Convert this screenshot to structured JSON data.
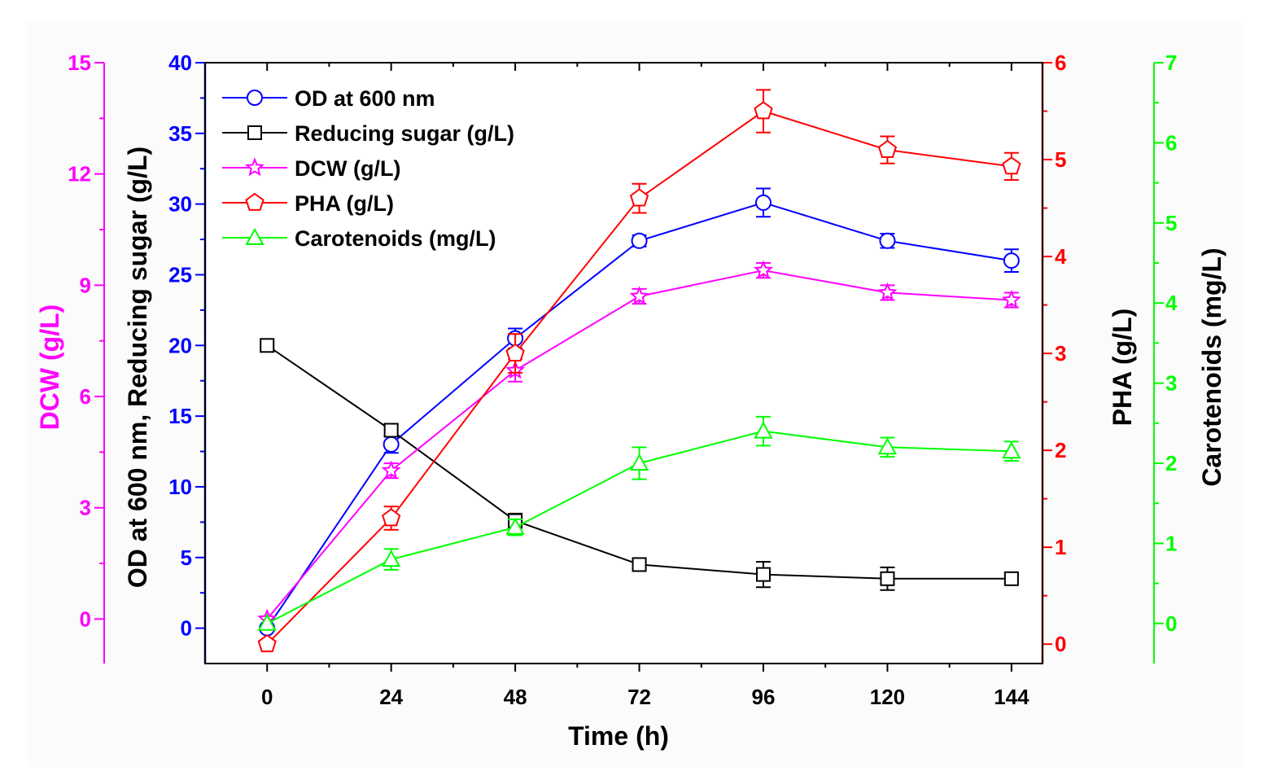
{
  "chart_data": {
    "type": "line",
    "xlabel": "Time (h)",
    "x": [
      0,
      24,
      48,
      72,
      96,
      120,
      144
    ],
    "x_ticks": [
      "0",
      "24",
      "48",
      "72",
      "96",
      "120",
      "144"
    ],
    "xlim": [
      -12,
      150
    ],
    "axes": [
      {
        "id": "dcw",
        "label": "DCW (g/L)",
        "color": "#FF00FF",
        "ylim": [
          -1.2,
          15
        ],
        "ticks": [
          "0",
          "3",
          "6",
          "9",
          "12",
          "15"
        ],
        "tick_values": [
          0,
          3,
          6,
          9,
          12,
          15
        ]
      },
      {
        "id": "left",
        "label": "OD at 600 nm, Reducing sugar (g/L)",
        "color": "#0000FF",
        "label_color": "#000000",
        "ylim": [
          -2.5,
          40
        ],
        "ticks": [
          "0",
          "5",
          "10",
          "15",
          "20",
          "25",
          "30",
          "35",
          "40"
        ],
        "tick_values": [
          0,
          5,
          10,
          15,
          20,
          25,
          30,
          35,
          40
        ]
      },
      {
        "id": "pha",
        "label": "PHA (g/L)",
        "color": "#FF0000",
        "label_color": "#000000",
        "ylim": [
          -0.2,
          6
        ],
        "ticks": [
          "0",
          "1",
          "2",
          "3",
          "4",
          "5",
          "6"
        ],
        "tick_values": [
          0,
          1,
          2,
          3,
          4,
          5,
          6
        ]
      },
      {
        "id": "car",
        "label": "Carotenoids (mg/L)",
        "color": "#00FF00",
        "label_color": "#000000",
        "ylim": [
          -0.5,
          7
        ],
        "ticks": [
          "0",
          "1",
          "2",
          "3",
          "4",
          "5",
          "6",
          "7"
        ],
        "tick_values": [
          0,
          1,
          2,
          3,
          4,
          5,
          6,
          7
        ]
      }
    ],
    "series": [
      {
        "name": "OD at 600 nm",
        "axis": "left",
        "color": "#0000FF",
        "marker": "circle",
        "values": [
          0,
          13.0,
          20.5,
          27.4,
          30.1,
          27.4,
          26.0
        ],
        "errors": [
          0,
          0.6,
          0.7,
          0.4,
          1.0,
          0.5,
          0.8
        ]
      },
      {
        "name": "Reducing sugar (g/L)",
        "axis": "left",
        "color": "#000000",
        "marker": "square",
        "values": [
          20.0,
          14.0,
          7.6,
          4.5,
          3.8,
          3.5,
          3.5
        ],
        "errors": [
          0,
          0.4,
          0.5,
          0.3,
          0.9,
          0.8,
          0.3
        ]
      },
      {
        "name": "DCW (g/L)",
        "axis": "dcw",
        "color": "#FF00FF",
        "marker": "star",
        "values": [
          0,
          4.0,
          6.7,
          8.7,
          9.4,
          8.8,
          8.6
        ],
        "errors": [
          0,
          0.2,
          0.3,
          0.2,
          0.2,
          0.2,
          0.2
        ]
      },
      {
        "name": "PHA (g/L)",
        "axis": "pha",
        "color": "#FF0000",
        "marker": "pentagon",
        "values": [
          0,
          1.3,
          3.0,
          4.6,
          5.5,
          5.1,
          4.93
        ],
        "errors": [
          0,
          0.12,
          0.2,
          0.15,
          0.22,
          0.14,
          0.14
        ]
      },
      {
        "name": "Carotenoids (mg/L)",
        "axis": "car",
        "color": "#00FF00",
        "marker": "triangle",
        "values": [
          0,
          0.8,
          1.2,
          2.0,
          2.4,
          2.2,
          2.15
        ],
        "errors": [
          0,
          0.13,
          0.1,
          0.2,
          0.18,
          0.12,
          0.12
        ]
      }
    ]
  }
}
